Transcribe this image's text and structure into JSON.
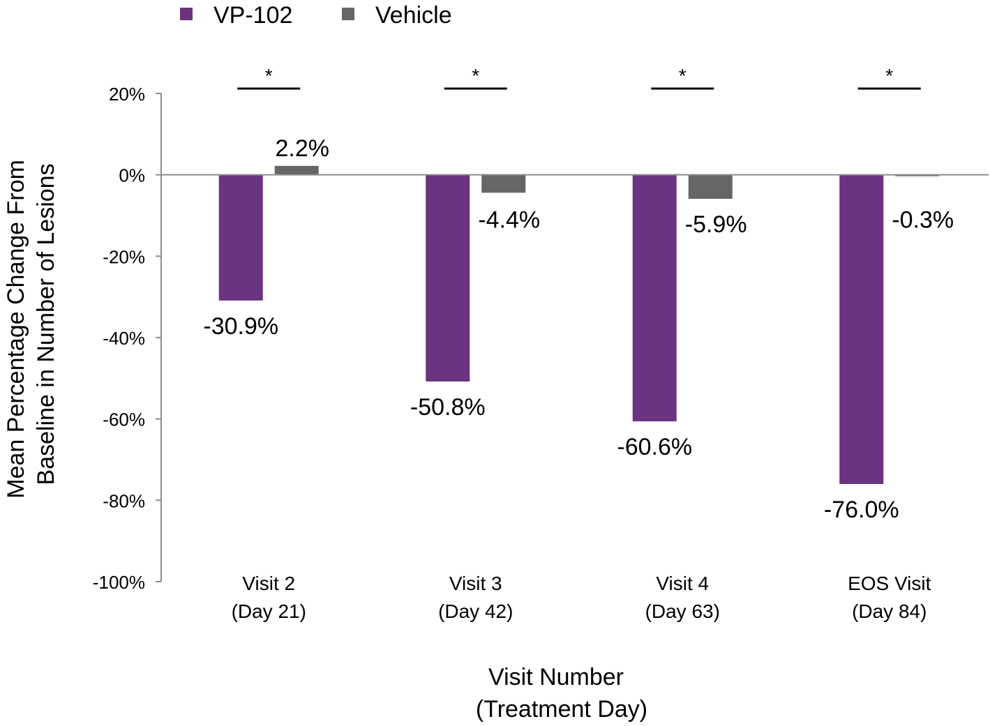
{
  "chart_data": {
    "type": "bar",
    "categories": [
      [
        "Visit 2",
        "(Day 21)"
      ],
      [
        "Visit 3",
        "(Day 42)"
      ],
      [
        "Visit 4",
        "(Day 63)"
      ],
      [
        "EOS Visit",
        "(Day 84)"
      ]
    ],
    "series": [
      {
        "name": "VP-102",
        "color": "#6b3380",
        "values": [
          -30.9,
          -50.8,
          -60.6,
          -76.0
        ],
        "labels": [
          "-30.9%",
          "-50.8%",
          "-60.6%",
          "-76.0%"
        ]
      },
      {
        "name": "Vehicle",
        "color": "#666666",
        "values": [
          2.2,
          -4.4,
          -5.9,
          -0.3
        ],
        "labels": [
          "2.2%",
          "-4.4%",
          "-5.9%",
          "-0.3%"
        ]
      }
    ],
    "significance": [
      "*",
      "*",
      "*",
      "*"
    ],
    "ylim": [
      -100,
      20
    ],
    "yticks": [
      20,
      0,
      -20,
      -40,
      -60,
      -80,
      -100
    ],
    "ytick_labels": [
      "20%",
      "0%",
      "-20%",
      "-40%",
      "-60%",
      "-80%",
      "-100%"
    ],
    "ylabel": [
      "Mean Percentage Change From",
      "Baseline in Number of Lesions"
    ],
    "xlabel": [
      "Visit Number",
      "(Treatment Day)"
    ],
    "legend_position": "top-left",
    "grid": false
  }
}
